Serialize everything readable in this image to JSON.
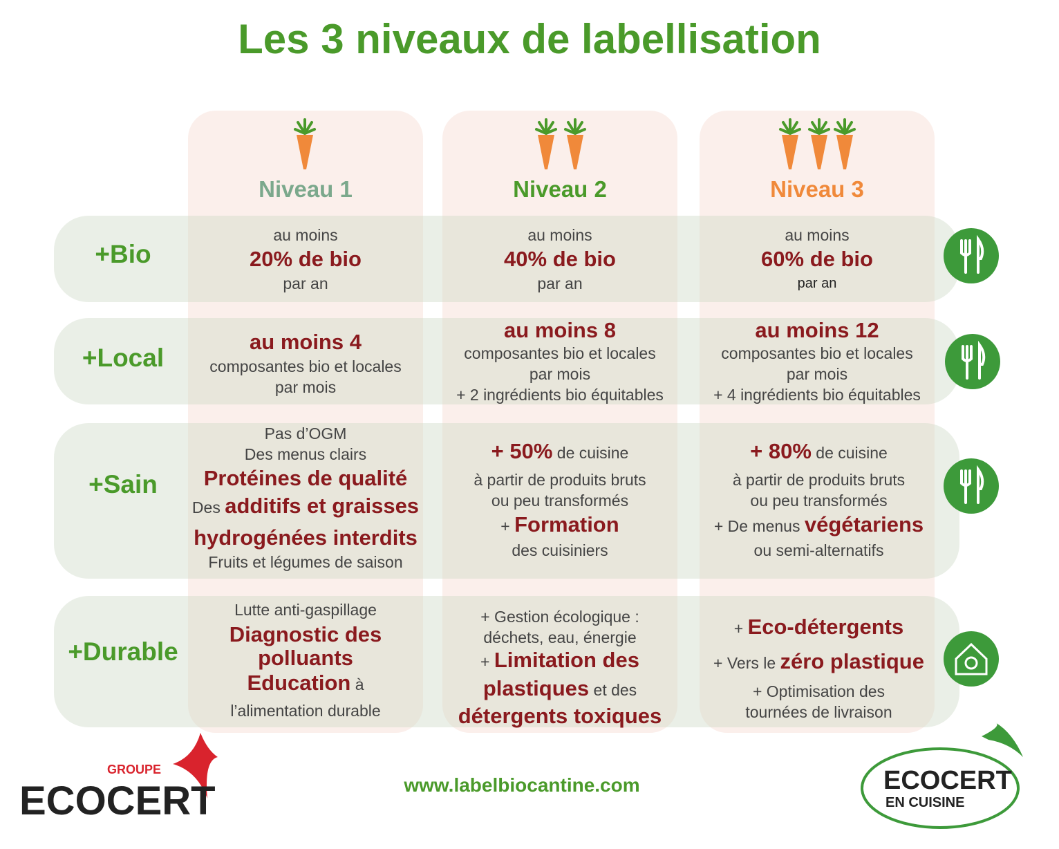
{
  "title": "Les 3 niveaux de labellisation",
  "levels": [
    "Niveau 1",
    "Niveau 2",
    "Niveau 3"
  ],
  "rows": [
    {
      "label": "+Bio",
      "cells": [
        [
          "au moins",
          "20% de bio",
          "par an"
        ],
        [
          "au moins",
          "40% de bio",
          "par an"
        ],
        [
          "au moins",
          "60% de bio",
          "par an"
        ]
      ]
    },
    {
      "label": "+Local",
      "cells": [
        [
          "au moins 4",
          "composantes bio et locales",
          "par mois"
        ],
        [
          "au moins 8",
          "composantes bio et locales",
          "par mois",
          "+ 2 ingrédients bio équitables"
        ],
        [
          "au moins 12",
          "composantes bio et locales",
          "par mois",
          "+ 4 ingrédients bio équitables"
        ]
      ]
    },
    {
      "label": "+Sain",
      "cells": [
        [
          "Pas d’OGM",
          "Des menus clairs",
          "Protéines de qualité",
          [
            "Des ",
            "additifs et graisses"
          ],
          "hydrogénées interdits",
          "Fruits et légumes de saison"
        ],
        [
          [
            "+ 50%",
            " de cuisine"
          ],
          "à partir de produits bruts",
          "ou peu transformés",
          [
            "+ ",
            "Formation"
          ],
          "des cuisiniers"
        ],
        [
          [
            "+ 80%",
            " de cuisine"
          ],
          "à partir de produits bruts",
          "ou peu transformés",
          [
            "+ De menus ",
            "végétariens"
          ],
          "ou semi-alternatifs"
        ]
      ]
    },
    {
      "label": "+Durable",
      "cells": [
        [
          "Lutte anti-gaspillage",
          "Diagnostic des",
          "polluants",
          [
            "Education",
            " à"
          ],
          "l’alimentation durable"
        ],
        [
          "+ Gestion écologique :",
          "déchets, eau, énergie",
          [
            "+ ",
            "Limitation des"
          ],
          [
            "plastiques",
            " et des"
          ],
          "détergents toxiques"
        ],
        [
          [
            "+ ",
            "Eco-détergents"
          ],
          [
            "+ Vers le ",
            "zéro plastique"
          ],
          "+ Optimisation des",
          "tournées de livraison"
        ]
      ]
    }
  ],
  "website": "www.labelbiocantine.com",
  "logo_left": {
    "top": "GROUPE",
    "name": "ECOCERT"
  },
  "logo_right": {
    "name": "ECOCERT",
    "sub": "EN CUISINE"
  }
}
